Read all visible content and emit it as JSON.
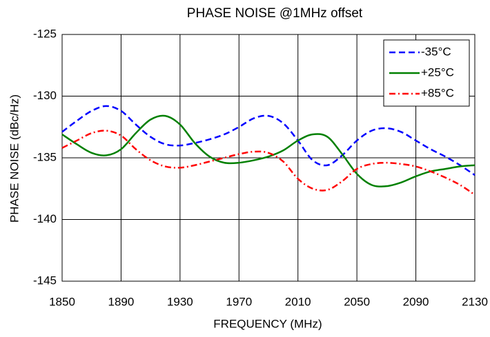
{
  "chart_data": {
    "type": "line",
    "title": "PHASE NOISE @1MHz offset",
    "x_label": "FREQUENCY (MHz)",
    "y_label": "PHASE NOISE  (dBc/Hz)",
    "x": [
      1850,
      1860,
      1870,
      1880,
      1890,
      1900,
      1910,
      1920,
      1930,
      1940,
      1950,
      1960,
      1970,
      1980,
      1990,
      2000,
      2010,
      2020,
      2030,
      2040,
      2050,
      2060,
      2070,
      2080,
      2090,
      2100,
      2110,
      2120,
      2130
    ],
    "series": [
      {
        "name": "-35°C",
        "color": "#0000ff",
        "style": "dashed",
        "values": [
          -132.9,
          -132.0,
          -131.2,
          -130.8,
          -131.2,
          -132.3,
          -133.3,
          -133.9,
          -134.0,
          -133.8,
          -133.5,
          -133.1,
          -132.5,
          -131.8,
          -131.6,
          -132.2,
          -133.6,
          -135.2,
          -135.6,
          -134.8,
          -133.6,
          -132.8,
          -132.6,
          -132.9,
          -133.6,
          -134.3,
          -134.9,
          -135.6,
          -136.4
        ]
      },
      {
        "name": "+25°C",
        "color": "#008000",
        "style": "solid",
        "values": [
          -133.1,
          -133.9,
          -134.6,
          -134.8,
          -134.3,
          -133.0,
          -131.9,
          -131.6,
          -132.3,
          -133.8,
          -134.9,
          -135.4,
          -135.4,
          -135.2,
          -134.9,
          -134.4,
          -133.6,
          -133.1,
          -133.3,
          -134.7,
          -136.3,
          -137.2,
          -137.3,
          -137.0,
          -136.5,
          -136.1,
          -135.9,
          -135.7,
          -135.6
        ]
      },
      {
        "name": "+85°C",
        "color": "#ff0000",
        "style": "dashdot",
        "values": [
          -134.2,
          -133.6,
          -133.0,
          -132.8,
          -133.2,
          -134.3,
          -135.2,
          -135.7,
          -135.8,
          -135.6,
          -135.3,
          -135.0,
          -134.7,
          -134.5,
          -134.6,
          -135.3,
          -136.7,
          -137.5,
          -137.6,
          -136.9,
          -135.9,
          -135.5,
          -135.4,
          -135.5,
          -135.7,
          -136.1,
          -136.6,
          -137.2,
          -138.0
        ]
      }
    ],
    "xlim": [
      1850,
      2130
    ],
    "xticks": [
      1850,
      1890,
      1930,
      1970,
      2010,
      2050,
      2090,
      2130
    ],
    "ylim": [
      -145,
      -125
    ],
    "yticks": [
      -145,
      -140,
      -135,
      -130,
      -125
    ],
    "grid": true,
    "legend": "upper right"
  }
}
